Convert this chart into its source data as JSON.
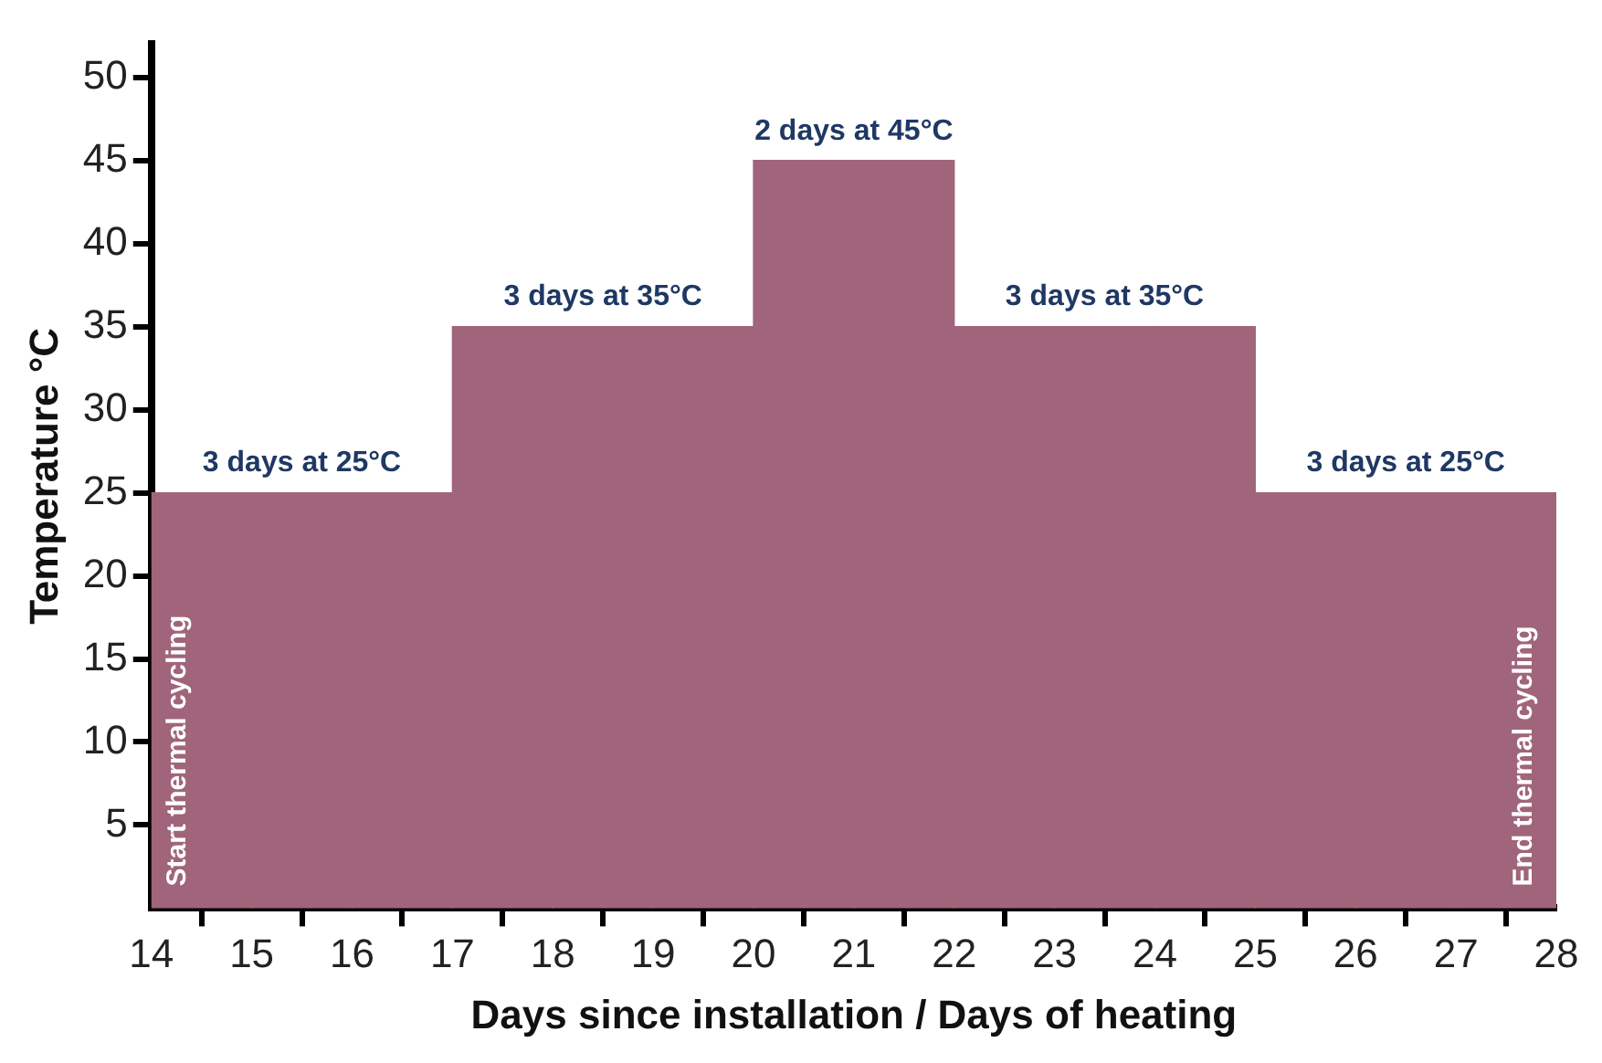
{
  "chart_data": {
    "type": "bar",
    "xlabel": "Days since installation / Days of heating",
    "ylabel": "Temperature °C",
    "x": [
      14.5,
      15.5,
      16.5,
      17.5,
      18.5,
      19.5,
      20.5,
      21.5,
      22.5,
      23.5,
      24.5,
      25.5,
      26.5,
      27.5
    ],
    "series": [
      {
        "color": "#a0657a",
        "values": [
          25,
          25,
          25,
          35,
          35,
          35,
          45,
          45,
          35,
          35,
          35,
          25,
          25,
          25
        ]
      }
    ],
    "xlim": [
      14,
      28
    ],
    "xticks": [
      14,
      15,
      16,
      17,
      18,
      19,
      20,
      21,
      22,
      23,
      24,
      25,
      26,
      27,
      28
    ],
    "ylim": [
      0,
      52
    ],
    "yticks": [
      5,
      10,
      15,
      20,
      25,
      30,
      35,
      40,
      45,
      50
    ],
    "grid": false,
    "legend": false,
    "annotations": [
      {
        "text": "3 days at 25°C",
        "x": 15.5,
        "y": 25
      },
      {
        "text": "3 days at 35°C",
        "x": 18.5,
        "y": 35
      },
      {
        "text": "2 days at 45°C",
        "x": 20.5,
        "y": 45
      },
      {
        "text": "3 days at 35°C",
        "x": 23.5,
        "y": 35
      },
      {
        "text": "3 days at 25°C",
        "x": 26.5,
        "y": 25
      },
      "Start thermal cycling",
      "End thermal cycling"
    ]
  }
}
